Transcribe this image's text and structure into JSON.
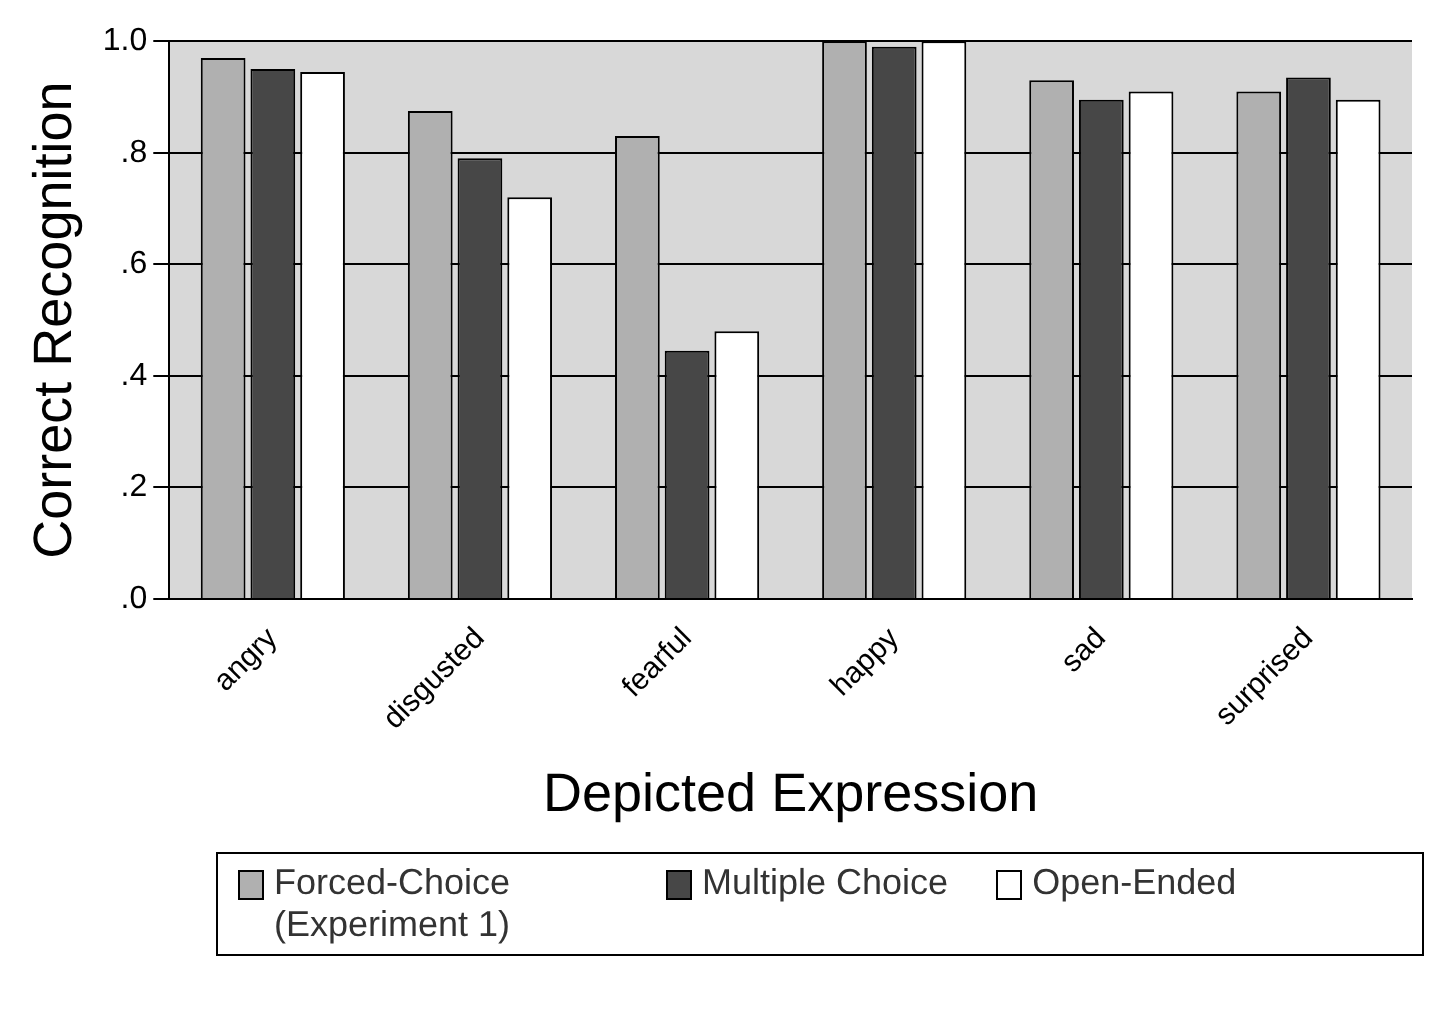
{
  "chart_data": {
    "type": "bar",
    "xlabel": "Depicted Expression",
    "ylabel": "Correct Recognition",
    "categories": [
      "angry",
      "disgusted",
      "fearful",
      "happy",
      "sad",
      "surprised"
    ],
    "series": [
      {
        "name": "Forced-Choice (Experiment 1)",
        "color": "#b0b0b0",
        "values": [
          0.97,
          0.875,
          0.83,
          1.0,
          0.93,
          0.91
        ]
      },
      {
        "name": "Multiple Choice",
        "color": "#474747",
        "values": [
          0.95,
          0.79,
          0.445,
          0.99,
          0.895,
          0.935
        ]
      },
      {
        "name": "Open-Ended",
        "color": "#ffffff",
        "values": [
          0.945,
          0.72,
          0.48,
          1.0,
          0.91,
          0.895
        ]
      }
    ],
    "ylim": [
      0,
      1
    ],
    "yticks": [
      {
        "value": 0,
        "label": ".0"
      },
      {
        "value": 0.2,
        "label": ".2"
      },
      {
        "value": 0.4,
        "label": ".4"
      },
      {
        "value": 0.6,
        "label": ".6"
      },
      {
        "value": 0.8,
        "label": ".8"
      },
      {
        "value": 1,
        "label": "1.0"
      }
    ],
    "grid": "y",
    "legend": "bottom"
  }
}
